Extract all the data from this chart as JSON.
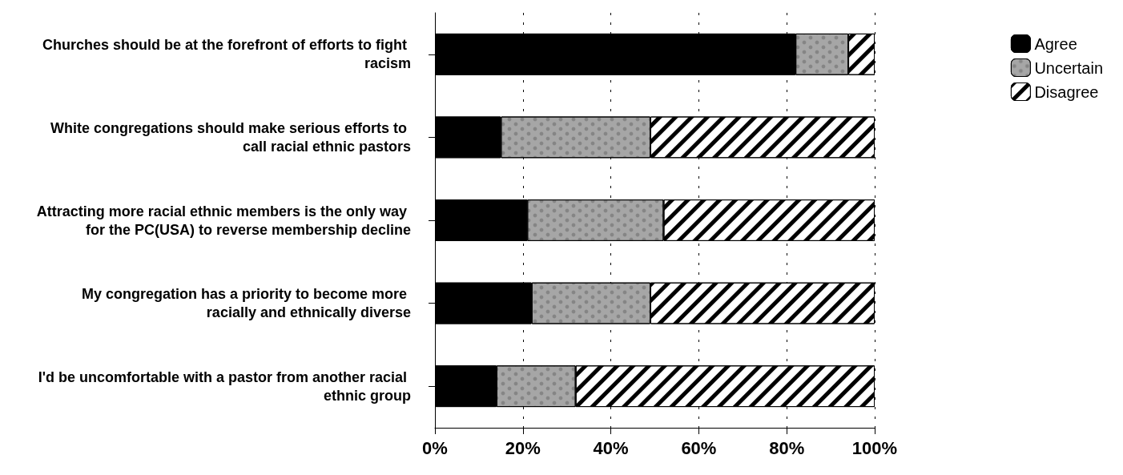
{
  "chart_data": {
    "type": "bar",
    "orientation": "horizontal",
    "stacked": true,
    "categories": [
      "Churches should be at the forefront of efforts to fight racism",
      "White congregations should make serious efforts to call racial ethnic pastors",
      "Attracting more racial ethnic members is the only way for the PC(USA) to reverse membership decline",
      "My congregation has a priority to become more racially and ethnically diverse",
      "I'd be uncomfortable with a pastor from another racial ethnic group"
    ],
    "series": [
      {
        "name": "Agree",
        "color": "#000000",
        "values": [
          82,
          15,
          21,
          22,
          14
        ]
      },
      {
        "name": "Uncertain",
        "color": "#a6a6a6",
        "values": [
          12,
          34,
          31,
          27,
          18
        ]
      },
      {
        "name": "Disagree",
        "color": "#ffffff",
        "values": [
          6,
          51,
          48,
          51,
          68
        ]
      }
    ],
    "xlim": [
      0,
      100
    ],
    "xticks": [
      {
        "value": 0,
        "label": "0%"
      },
      {
        "value": 20,
        "label": "20%"
      },
      {
        "value": 40,
        "label": "40%"
      },
      {
        "value": 60,
        "label": "60%"
      },
      {
        "value": 80,
        "label": "80%"
      },
      {
        "value": 100,
        "label": "100%"
      }
    ],
    "grid": "x",
    "legend": "top right"
  }
}
